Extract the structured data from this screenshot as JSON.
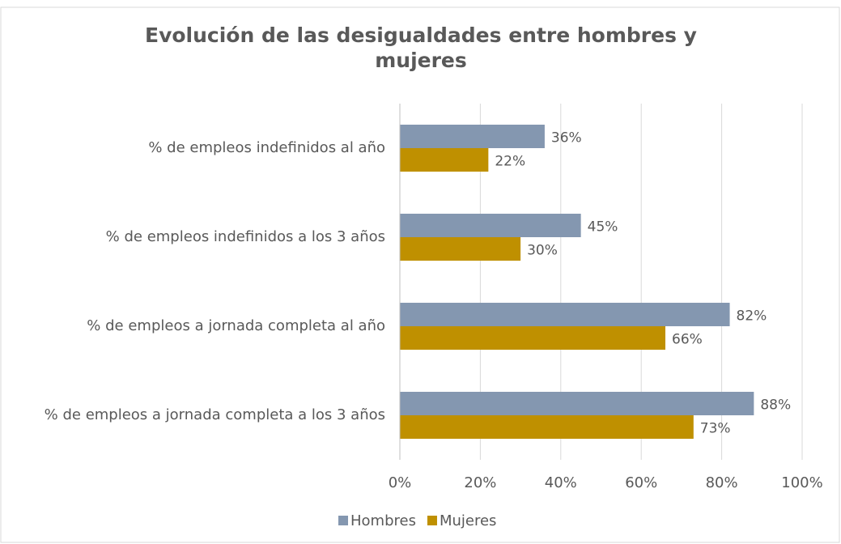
{
  "chart_data": {
    "type": "bar",
    "orientation": "horizontal",
    "title": "Evolución de las desigualdades entre hombres y mujeres",
    "categories": [
      "% de empleos indefinidos al año",
      "% de empleos indefinidos a los 3 años",
      "% de empleos a jornada completa al año",
      "% de empleos a jornada completa a los 3 años"
    ],
    "series": [
      {
        "name": "Hombres",
        "color": "#8497b0",
        "values": [
          36,
          45,
          82,
          88
        ],
        "value_labels": [
          "36%",
          "45%",
          "82%",
          "88%"
        ]
      },
      {
        "name": "Mujeres",
        "color": "#bf9000",
        "values": [
          22,
          30,
          66,
          73
        ],
        "value_labels": [
          "22%",
          "30%",
          "66%",
          "73%"
        ]
      }
    ],
    "xlim": [
      0,
      100
    ],
    "xticks": [
      {
        "value": 0,
        "label": "0%"
      },
      {
        "value": 20,
        "label": "20%"
      },
      {
        "value": 40,
        "label": "40%"
      },
      {
        "value": 60,
        "label": "60%"
      },
      {
        "value": 80,
        "label": "80%"
      },
      {
        "value": 100,
        "label": "100%"
      }
    ],
    "grid": true,
    "legend": "bottom"
  }
}
